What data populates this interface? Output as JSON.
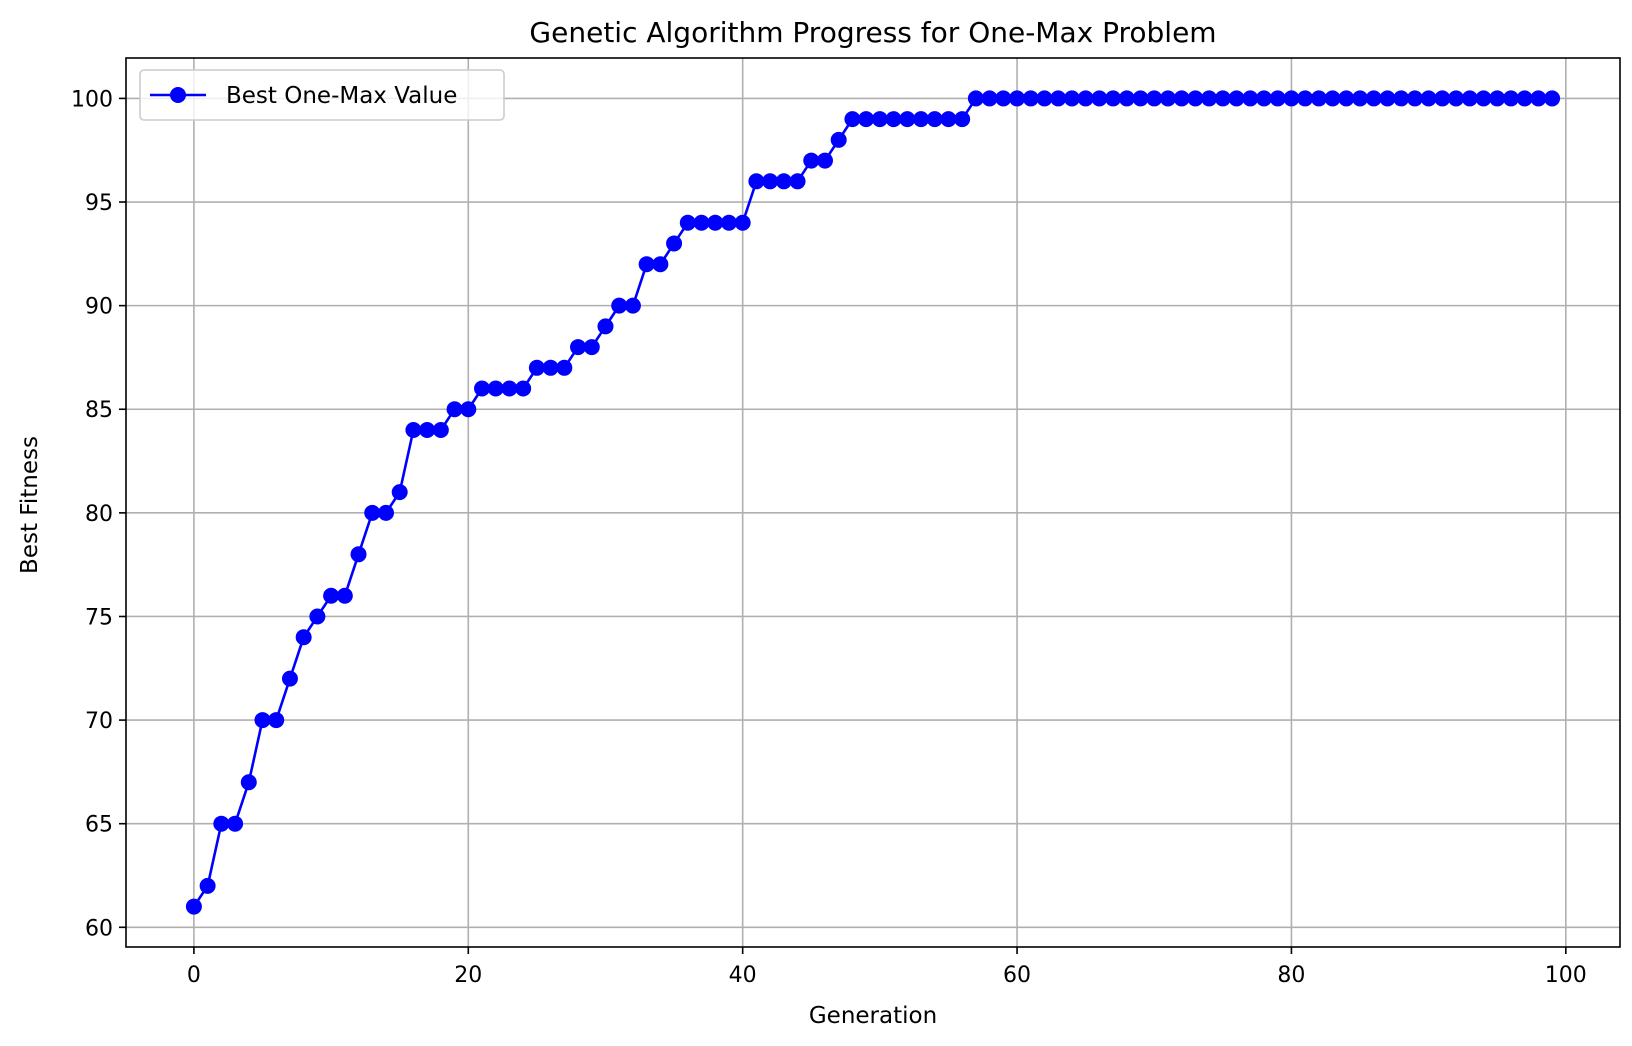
{
  "chart_data": {
    "type": "line",
    "title": "Genetic Algorithm Progress for One-Max Problem",
    "xlabel": "Generation",
    "ylabel": "Best Fitness",
    "xlim": [
      -4.95,
      103.95
    ],
    "ylim": [
      59.05,
      101.95
    ],
    "xticks": [
      0,
      20,
      40,
      60,
      80,
      100
    ],
    "yticks": [
      60,
      65,
      70,
      75,
      80,
      85,
      90,
      95,
      100
    ],
    "xtick_labels": [
      "0",
      "20",
      "40",
      "60",
      "80",
      "100"
    ],
    "ytick_labels": [
      "60",
      "65",
      "70",
      "75",
      "80",
      "85",
      "90",
      "95",
      "100"
    ],
    "grid": true,
    "legend_position": "upper-left",
    "series": [
      {
        "name": "Best One-Max Value",
        "color": "#0000ff",
        "marker": "circle",
        "x": [
          0,
          1,
          2,
          3,
          4,
          5,
          6,
          7,
          8,
          9,
          10,
          11,
          12,
          13,
          14,
          15,
          16,
          17,
          18,
          19,
          20,
          21,
          22,
          23,
          24,
          25,
          26,
          27,
          28,
          29,
          30,
          31,
          32,
          33,
          34,
          35,
          36,
          37,
          38,
          39,
          40,
          41,
          42,
          43,
          44,
          45,
          46,
          47,
          48,
          49,
          50,
          51,
          52,
          53,
          54,
          55,
          56,
          57,
          58,
          59,
          60,
          61,
          62,
          63,
          64,
          65,
          66,
          67,
          68,
          69,
          70,
          71,
          72,
          73,
          74,
          75,
          76,
          77,
          78,
          79,
          80,
          81,
          82,
          83,
          84,
          85,
          86,
          87,
          88,
          89,
          90,
          91,
          92,
          93,
          94,
          95,
          96,
          97,
          98,
          99
        ],
        "values": [
          61,
          62,
          65,
          65,
          67,
          70,
          70,
          72,
          74,
          75,
          76,
          76,
          78,
          80,
          80,
          81,
          84,
          84,
          84,
          85,
          85,
          86,
          86,
          86,
          86,
          87,
          87,
          87,
          88,
          88,
          89,
          90,
          90,
          92,
          92,
          93,
          94,
          94,
          94,
          94,
          94,
          96,
          96,
          96,
          96,
          97,
          97,
          98,
          99,
          99,
          99,
          99,
          99,
          99,
          99,
          99,
          99,
          100,
          100,
          100,
          100,
          100,
          100,
          100,
          100,
          100,
          100,
          100,
          100,
          100,
          100,
          100,
          100,
          100,
          100,
          100,
          100,
          100,
          100,
          100,
          100,
          100,
          100,
          100,
          100,
          100,
          100,
          100,
          100,
          100,
          100,
          100,
          100,
          100,
          100,
          100,
          100,
          100,
          100,
          100
        ]
      }
    ]
  }
}
